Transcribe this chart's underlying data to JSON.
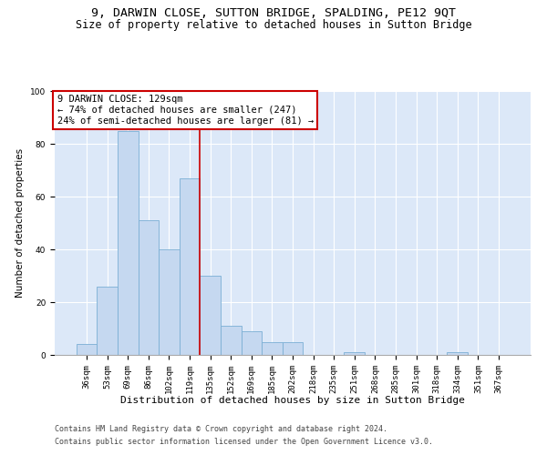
{
  "title1": "9, DARWIN CLOSE, SUTTON BRIDGE, SPALDING, PE12 9QT",
  "title2": "Size of property relative to detached houses in Sutton Bridge",
  "xlabel": "Distribution of detached houses by size in Sutton Bridge",
  "ylabel": "Number of detached properties",
  "categories": [
    "36sqm",
    "53sqm",
    "69sqm",
    "86sqm",
    "102sqm",
    "119sqm",
    "135sqm",
    "152sqm",
    "169sqm",
    "185sqm",
    "202sqm",
    "218sqm",
    "235sqm",
    "251sqm",
    "268sqm",
    "285sqm",
    "301sqm",
    "318sqm",
    "334sqm",
    "351sqm",
    "367sqm"
  ],
  "values": [
    4,
    26,
    85,
    51,
    40,
    67,
    30,
    11,
    9,
    5,
    5,
    0,
    0,
    1,
    0,
    0,
    0,
    0,
    1,
    0,
    0
  ],
  "bar_color": "#c5d8f0",
  "bar_edge_color": "#7aafd4",
  "annotation_line1": "9 DARWIN CLOSE: 129sqm",
  "annotation_line2": "← 74% of detached houses are smaller (247)",
  "annotation_line3": "24% of semi-detached houses are larger (81) →",
  "vline_position": 5.5,
  "annotation_box_color": "#ffffff",
  "annotation_box_edge_color": "#cc0000",
  "vline_color": "#cc0000",
  "background_color": "#dce8f8",
  "fig_background_color": "#ffffff",
  "footer1": "Contains HM Land Registry data © Crown copyright and database right 2024.",
  "footer2": "Contains public sector information licensed under the Open Government Licence v3.0.",
  "ylim": [
    0,
    100
  ],
  "title1_fontsize": 9.5,
  "title2_fontsize": 8.5,
  "xlabel_fontsize": 8,
  "ylabel_fontsize": 7.5,
  "tick_fontsize": 6.5,
  "annotation_fontsize": 7.5,
  "footer_fontsize": 6.0,
  "ytick_values": [
    0,
    20,
    40,
    60,
    80,
    100
  ]
}
